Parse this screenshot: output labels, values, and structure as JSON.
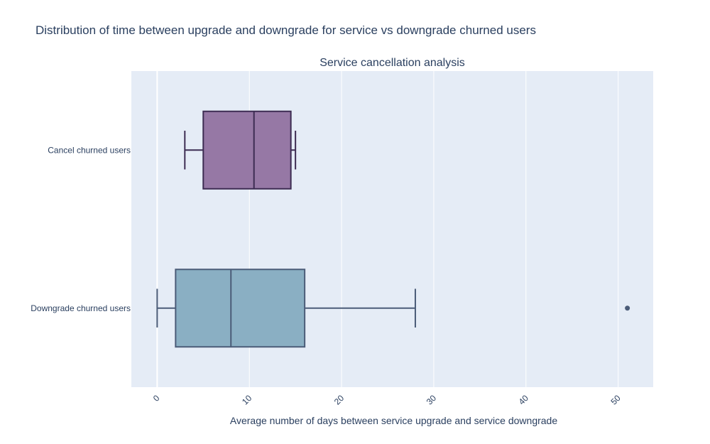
{
  "title": "Distribution of time between upgrade and downgrade for service vs downgrade churned users",
  "colors": {
    "plot_bg": "#e5ecf6",
    "grid": "#ffffff",
    "text": "#2a3f5f"
  },
  "chart_data": {
    "type": "box",
    "orientation": "horizontal",
    "subtitle": "Service cancellation analysis",
    "xlabel": "Average number of days between service upgrade and service downgrade",
    "ylabel": "",
    "xlim": [
      -2.8,
      53.8
    ],
    "xticks": [
      0,
      10,
      20,
      30,
      40,
      50
    ],
    "grid": true,
    "series": [
      {
        "name": "Cancel churned users",
        "min": 3,
        "q1": 5,
        "median": 10.5,
        "q3": 14.5,
        "max": 15,
        "outliers": [],
        "fill": "#9678a5",
        "line": "#3d2c52"
      },
      {
        "name": "Downgrade churned users",
        "min": 0,
        "q1": 2,
        "median": 8,
        "q3": 16,
        "max": 28,
        "outliers": [
          51
        ],
        "fill": "#8aafc3",
        "line": "#4b5c78"
      }
    ]
  }
}
